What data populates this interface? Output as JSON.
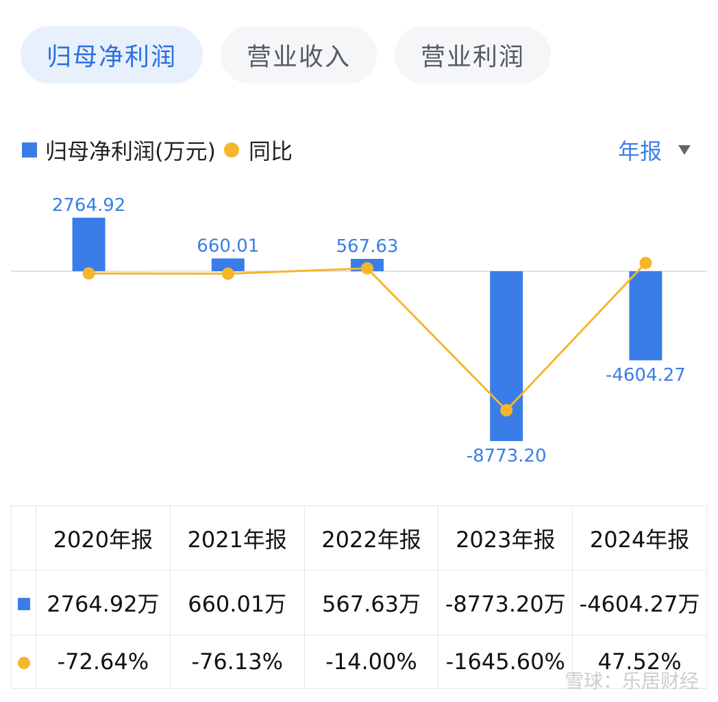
{
  "tabs": [
    {
      "label": "归母净利润",
      "active": true
    },
    {
      "label": "营业收入",
      "active": false
    },
    {
      "label": "营业利润",
      "active": false
    }
  ],
  "legend": {
    "bar_label": "归母净利润(万元)",
    "line_label": "同比"
  },
  "period_select": {
    "label": "年报"
  },
  "colors": {
    "bar": "#3a7de8",
    "line": "#f7b52b",
    "positive": "#e24a4a",
    "negative": "#2fa36b"
  },
  "chart_data": {
    "type": "bar",
    "categories": [
      "2020年报",
      "2021年报",
      "2022年报",
      "2023年报",
      "2024年报"
    ],
    "series": [
      {
        "name": "归母净利润(万元)",
        "type": "bar",
        "values": [
          2764.92,
          660.01,
          567.63,
          -8773.2,
          -4604.27
        ],
        "labels": [
          "2764.92",
          "660.01",
          "567.63",
          "-8773.20",
          "-4604.27"
        ]
      },
      {
        "name": "同比",
        "type": "line",
        "values": [
          -72.64,
          -76.13,
          -14.0,
          -1645.6,
          47.52
        ]
      }
    ]
  },
  "table": {
    "headers": [
      "2020年报",
      "2021年报",
      "2022年报",
      "2023年报",
      "2024年报"
    ],
    "profit_row": [
      "2764.92万",
      "660.01万",
      "567.63万",
      "-8773.20万",
      "-4604.27万"
    ],
    "yoy_row": [
      "-72.64%",
      "-76.13%",
      "-14.00%",
      "-1645.60%",
      "47.52%"
    ]
  },
  "watermark": "雪球：乐居财经"
}
